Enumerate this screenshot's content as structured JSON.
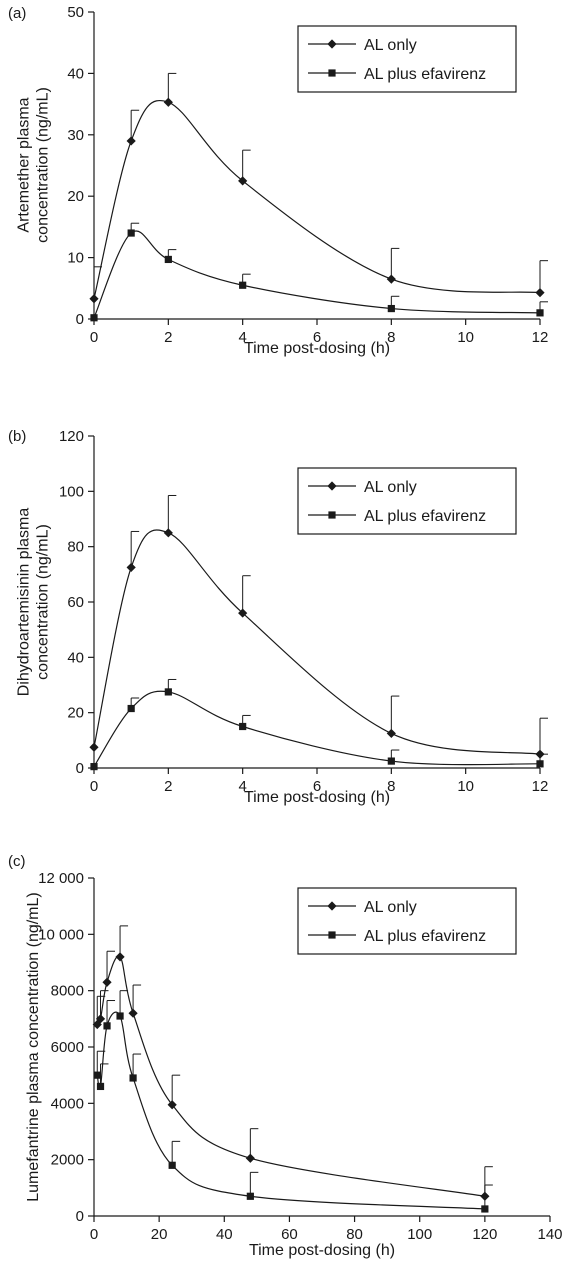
{
  "colors": {
    "ink": "#1a1a1a",
    "background": "#ffffff"
  },
  "chart_data": [
    {
      "type": "line",
      "panel_label": "(a)",
      "ylabel_lines": [
        "Artemether plasma",
        "concentration (ng/mL)"
      ],
      "xlabel": "Time post-dosing (h)",
      "xlim": [
        0,
        12
      ],
      "ylim": [
        0,
        50
      ],
      "xticks": [
        0,
        2,
        4,
        6,
        8,
        10,
        12
      ],
      "yticks": [
        0,
        10,
        20,
        30,
        40,
        50
      ],
      "ytick_labels": [
        "0",
        "10",
        "20",
        "30",
        "40",
        "50"
      ],
      "legend_position": "top-right",
      "series": [
        {
          "name": "AL only",
          "marker": "diamond",
          "x": [
            0,
            1,
            2,
            4,
            8,
            12
          ],
          "y": [
            3.3,
            29,
            35.3,
            22.5,
            6.5,
            4.3
          ],
          "err": [
            5.2,
            5,
            4.7,
            5,
            5,
            5.2
          ]
        },
        {
          "name": "AL plus efavirenz",
          "marker": "square",
          "x": [
            0,
            1,
            2,
            4,
            8,
            12
          ],
          "y": [
            0.2,
            14,
            9.7,
            5.5,
            1.7,
            1
          ],
          "err": [
            0,
            1.6,
            1.6,
            1.8,
            2,
            1.8
          ]
        }
      ]
    },
    {
      "type": "line",
      "panel_label": "(b)",
      "ylabel_lines": [
        "Dihydroartemisinin plasma",
        "concentration (ng/mL)"
      ],
      "xlabel": "Time post-dosing (h)",
      "xlim": [
        0,
        12
      ],
      "ylim": [
        0,
        120
      ],
      "xticks": [
        0,
        2,
        4,
        6,
        8,
        10,
        12
      ],
      "yticks": [
        0,
        20,
        40,
        60,
        80,
        100,
        120
      ],
      "ytick_labels": [
        "0",
        "20",
        "40",
        "60",
        "80",
        "100",
        "120"
      ],
      "legend_position": "top-right",
      "series": [
        {
          "name": "AL only",
          "marker": "diamond",
          "x": [
            0,
            1,
            2,
            4,
            8,
            12
          ],
          "y": [
            7.5,
            72.5,
            85,
            56,
            12.5,
            5
          ],
          "err": [
            0,
            13,
            13.5,
            13.5,
            13.5,
            13
          ]
        },
        {
          "name": "AL plus efavirenz",
          "marker": "square",
          "x": [
            0,
            1,
            2,
            4,
            8,
            12
          ],
          "y": [
            0.5,
            21.5,
            27.5,
            15,
            2.5,
            1.5
          ],
          "err": [
            0,
            3.8,
            4.5,
            4,
            4,
            3.5
          ]
        }
      ]
    },
    {
      "type": "line",
      "panel_label": "(c)",
      "ylabel_lines": [
        "Lumefantrine plasma concentration (ng/mL)"
      ],
      "xlabel": "Time post-dosing (h)",
      "xlim": [
        0,
        140
      ],
      "ylim": [
        0,
        12000
      ],
      "xticks": [
        0,
        20,
        40,
        60,
        80,
        100,
        120,
        140
      ],
      "yticks": [
        0,
        2000,
        4000,
        6000,
        8000,
        10000,
        12000
      ],
      "ytick_labels": [
        "0",
        "2000",
        "4000",
        "6000",
        "8000",
        "10 000",
        "12 000"
      ],
      "legend_position": "top-right",
      "series": [
        {
          "name": "AL only",
          "marker": "diamond",
          "x": [
            1,
            2,
            4,
            8,
            12,
            24,
            48,
            120
          ],
          "y": [
            6800,
            7000,
            8300,
            9200,
            7200,
            3950,
            2050,
            700
          ],
          "err": [
            1000,
            1000,
            1100,
            1100,
            1000,
            1050,
            1050,
            1050
          ]
        },
        {
          "name": "AL plus efavirenz",
          "marker": "square",
          "x": [
            1,
            2,
            4,
            8,
            12,
            24,
            48,
            120
          ],
          "y": [
            5000,
            4600,
            6750,
            7100,
            4900,
            1800,
            700,
            250
          ],
          "err": [
            850,
            800,
            900,
            900,
            850,
            850,
            850,
            850
          ]
        }
      ]
    }
  ]
}
